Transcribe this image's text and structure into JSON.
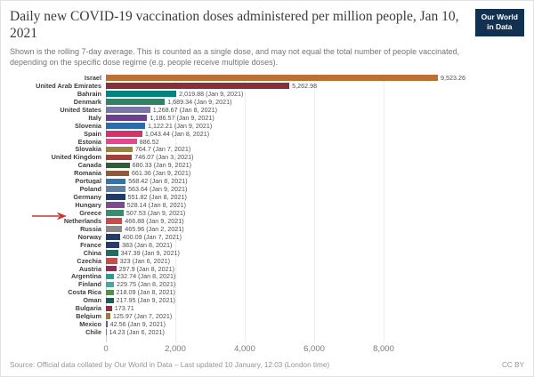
{
  "header": {
    "title": "Daily new COVID-19 vaccination doses administered per million people, Jan 10, 2021",
    "subtitle": "Shown is the rolling 7-day average. This is counted as a single dose, and may not equal the total number of people vaccinated, depending on the specific dose regime (e.g. people receive multiple doses).",
    "logo_line1": "Our World",
    "logo_line2": "in Data",
    "logo_bg": "#12304f"
  },
  "chart_data": {
    "type": "bar",
    "orientation": "horizontal",
    "title": "Daily new COVID-19 vaccination doses administered per million people, Jan 10, 2021",
    "xlabel": "",
    "ylabel": "",
    "x_max": 12000,
    "x_tick_values": [
      0,
      2000,
      4000,
      6000,
      8000
    ],
    "x_ticks": [
      "0",
      "2,000",
      "4,000",
      "6,000",
      "8,000"
    ],
    "grid": true,
    "annotation": {
      "type": "red-arrow",
      "target": "Greece",
      "color": "#d0342c"
    },
    "rows": [
      {
        "country": "Israel",
        "value": 9523.26,
        "label": "9,523.26",
        "color": "#bd7033",
        "arrow": false
      },
      {
        "country": "United Arab Emirates",
        "value": 5262.98,
        "label": "5,262.98",
        "color": "#883039",
        "arrow": false
      },
      {
        "country": "Bahrain",
        "value": 2019.88,
        "label": "2,019.88 (Jan 9, 2021)",
        "color": "#00847e",
        "arrow": false
      },
      {
        "country": "Denmark",
        "value": 1689.34,
        "label": "1,689.34 (Jan 9, 2021)",
        "color": "#2c8465",
        "arrow": false
      },
      {
        "country": "United States",
        "value": 1268.67,
        "label": "1,268.67 (Jan 8, 2021)",
        "color": "#7a76a5",
        "arrow": false
      },
      {
        "country": "Italy",
        "value": 1186.57,
        "label": "1,186.57 (Jan 9, 2021)",
        "color": "#6d3e91",
        "arrow": false
      },
      {
        "country": "Slovenia",
        "value": 1122.21,
        "label": "1,122.21 (Jan 9, 2021)",
        "color": "#2c6cac",
        "arrow": false
      },
      {
        "country": "Spain",
        "value": 1043.44,
        "label": "1,043.44 (Jan 8, 2021)",
        "color": "#d4326c",
        "arrow": false
      },
      {
        "country": "Estonia",
        "value": 886.52,
        "label": "886.52",
        "color": "#e6478d",
        "arrow": false
      },
      {
        "country": "Slovakia",
        "value": 764.7,
        "label": "764.7 (Jan 7, 2021)",
        "color": "#9c8145",
        "arrow": false
      },
      {
        "country": "United Kingdom",
        "value": 746.07,
        "label": "746.07 (Jan 3, 2021)",
        "color": "#a2403c",
        "arrow": false
      },
      {
        "country": "Canada",
        "value": 680.33,
        "label": "680.33 (Jan 9, 2021)",
        "color": "#2c5d34",
        "arrow": false
      },
      {
        "country": "Romania",
        "value": 661.36,
        "label": "661.36 (Jan 9, 2021)",
        "color": "#8f5a3b",
        "arrow": false
      },
      {
        "country": "Portugal",
        "value": 568.42,
        "label": "568.42 (Jan 8, 2021)",
        "color": "#3573a8",
        "arrow": false
      },
      {
        "country": "Poland",
        "value": 563.64,
        "label": "563.64 (Jan 9, 2021)",
        "color": "#6480a0",
        "arrow": false
      },
      {
        "country": "Germany",
        "value": 551.82,
        "label": "551.82 (Jan 8, 2021)",
        "color": "#1f3b66",
        "arrow": false
      },
      {
        "country": "Hungary",
        "value": 528.14,
        "label": "528.14 (Jan 8, 2021)",
        "color": "#7f4a8e",
        "arrow": false
      },
      {
        "country": "Greece",
        "value": 507.53,
        "label": "507.53 (Jan 9, 2021)",
        "color": "#3d8a6c",
        "arrow": true
      },
      {
        "country": "Netherlands",
        "value": 466.88,
        "label": "466.88 (Jan 9, 2021)",
        "color": "#c74b4b",
        "arrow": false
      },
      {
        "country": "Russia",
        "value": 465.96,
        "label": "465.96 (Jan 2, 2021)",
        "color": "#8a8a8a",
        "arrow": false
      },
      {
        "country": "Norway",
        "value": 400.09,
        "label": "400.09 (Jan 7, 2021)",
        "color": "#243c6c",
        "arrow": false
      },
      {
        "country": "France",
        "value": 383,
        "label": "383 (Jan 8, 2021)",
        "color": "#2a3b6b",
        "arrow": false
      },
      {
        "country": "China",
        "value": 347.39,
        "label": "347.39 (Jan 9, 2021)",
        "color": "#1d6d64",
        "arrow": false
      },
      {
        "country": "Czechia",
        "value": 323,
        "label": "323 (Jan 6, 2021)",
        "color": "#c0504e",
        "arrow": false
      },
      {
        "country": "Austria",
        "value": 297.9,
        "label": "297.9 (Jan 8, 2021)",
        "color": "#8e2f55",
        "arrow": false
      },
      {
        "country": "Argentina",
        "value": 232.74,
        "label": "232.74 (Jan 8, 2021)",
        "color": "#2a9d8f",
        "arrow": false
      },
      {
        "country": "Finland",
        "value": 229.75,
        "label": "229.75 (Jan 8, 2021)",
        "color": "#4aa5a0",
        "arrow": false
      },
      {
        "country": "Costa Rica",
        "value": 218.09,
        "label": "218.09 (Jan 8, 2021)",
        "color": "#4e9444",
        "arrow": false
      },
      {
        "country": "Oman",
        "value": 217.95,
        "label": "217.95 (Jan 9, 2021)",
        "color": "#1a5d52",
        "arrow": false
      },
      {
        "country": "Bulgaria",
        "value": 173.71,
        "label": "173.71",
        "color": "#8e2f45",
        "arrow": false
      },
      {
        "country": "Belgium",
        "value": 125.97,
        "label": "125.97 (Jan 7, 2021)",
        "color": "#9b7c3c",
        "arrow": false
      },
      {
        "country": "Mexico",
        "value": 42.56,
        "label": "42.56 (Jan 9, 2021)",
        "color": "#7a4fa0",
        "arrow": false
      },
      {
        "country": "Chile",
        "value": 14.23,
        "label": "14.23 (Jan 6, 2021)",
        "color": "#9a5fa5",
        "arrow": false
      }
    ]
  },
  "footer": {
    "source": "Source: Official data collated by Our World in Data – Last updated 10 January, 12:03 (London time)",
    "license": "CC BY"
  }
}
